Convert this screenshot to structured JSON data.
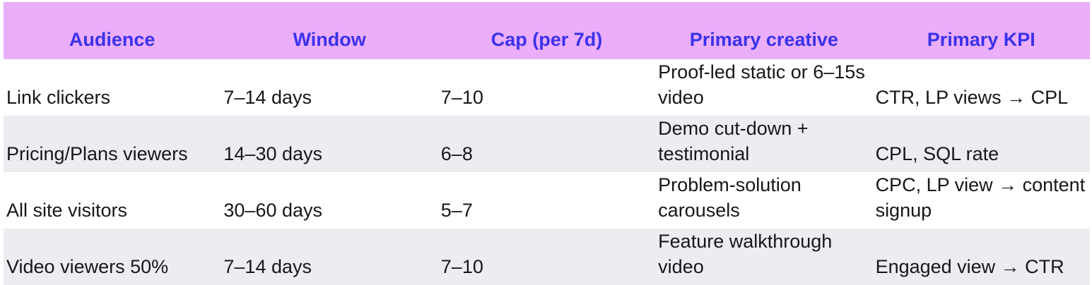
{
  "colors": {
    "header_bg": "#eaaefa",
    "header_text": "#3c31ec",
    "row_alt_bg": "#ebedf1",
    "row_bg": "#ffffff",
    "body_text": "#17171a"
  },
  "table": {
    "headers": [
      "Audience",
      "Window",
      "Cap (per 7d)",
      "Primary creative",
      "Primary KPI"
    ],
    "rows": [
      {
        "audience": "Link clickers",
        "window": "7–14 days",
        "cap": "7–10",
        "creative": "Proof-led static or 6–15s video",
        "kpi": "CTR, LP views → CPL"
      },
      {
        "audience": "Pricing/Plans viewers",
        "window": "14–30 days",
        "cap": "6–8",
        "creative": "Demo cut-down + testimonial",
        "kpi": "CPL, SQL rate"
      },
      {
        "audience": "All site visitors",
        "window": "30–60 days",
        "cap": "5–7",
        "creative": "Problem-solution carousels",
        "kpi": "CPC, LP view → content signup"
      },
      {
        "audience": "Video viewers 50%",
        "window": "7–14 days",
        "cap": "7–10",
        "creative": "Feature walkthrough video",
        "kpi": "Engaged view → CTR"
      }
    ]
  }
}
